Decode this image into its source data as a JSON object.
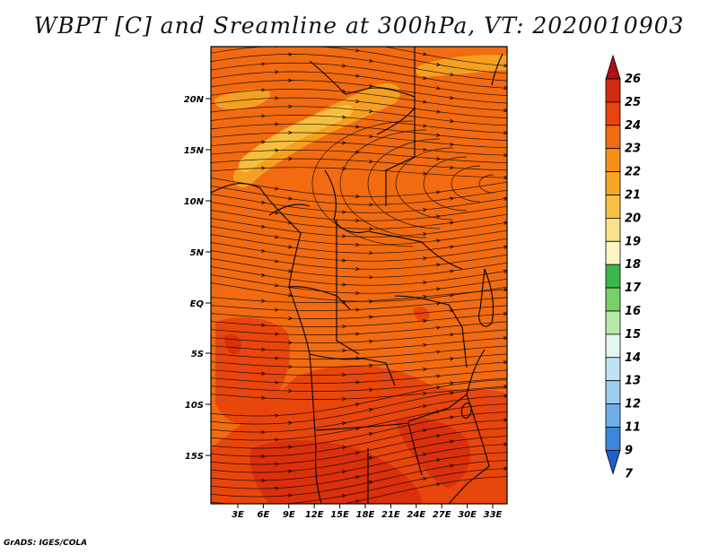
{
  "title": "WBPT [C] and Sreamline at 300hPa, VT: 2020010903",
  "credit": "GrADS: IGES/COLA",
  "map": {
    "lat_labels": [
      "20N",
      "15N",
      "10N",
      "5N",
      "EQ",
      "5S",
      "10S",
      "15S"
    ],
    "lon_labels": [
      "3E",
      "6E",
      "9E",
      "12E",
      "15E",
      "18E",
      "21E",
      "24E",
      "27E",
      "30E",
      "33E"
    ],
    "field_colors": {
      "base": "#f26b10",
      "light": "#f5a623",
      "yellow": "#f7c242",
      "dark": "#e8430c",
      "red": "#d92d0c"
    },
    "streamline_color": "#000000"
  },
  "colorbar": {
    "levels": [
      "26",
      "25",
      "24",
      "23",
      "22",
      "21",
      "20",
      "19",
      "18",
      "17",
      "16",
      "15",
      "14",
      "13",
      "12",
      "11",
      "9",
      "7"
    ],
    "colors": [
      "#b01010",
      "#d22a10",
      "#e8430c",
      "#f26b10",
      "#f78e18",
      "#f5a623",
      "#f7c242",
      "#fae38a",
      "#fdf6c4",
      "#3cb84a",
      "#78d06a",
      "#b7e8a8",
      "#e5f6ee",
      "#bfe3f5",
      "#9dcdf0",
      "#6eafe8",
      "#3b86da",
      "#1f5fc8"
    ]
  }
}
